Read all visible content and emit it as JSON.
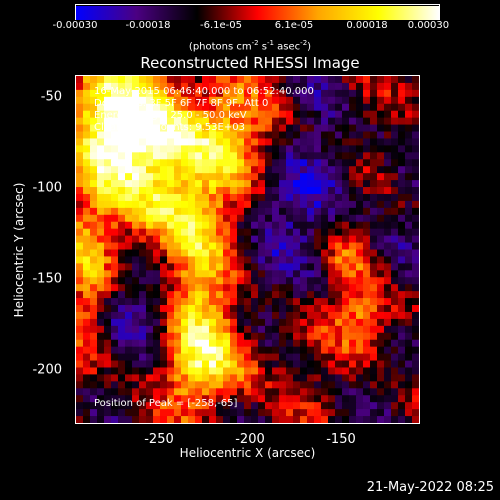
{
  "chart_data": {
    "type": "heatmap",
    "title": "Reconstructed RHESSI Image",
    "xlabel": "Heliocentric X (arcsec)",
    "ylabel": "Heliocentric Y (arcsec)",
    "xlim": [
      -295,
      -112
    ],
    "ylim": [
      -228,
      -37
    ],
    "x_ticks": [
      "-250",
      "-200",
      "-150"
    ],
    "x_tick_values": [
      -250,
      -200,
      -150
    ],
    "y_ticks": [
      "-50",
      "-100",
      "-150",
      "-200"
    ],
    "y_tick_values": [
      -50,
      -100,
      -150,
      -200
    ],
    "colorbar": {
      "ticks": [
        "-0.00030",
        "-0.00018",
        "-6.1e-05",
        "6.1e-05",
        "0.00018",
        "0.00030"
      ],
      "tick_values": [
        -0.0003,
        -0.00018,
        -6.1e-05,
        6.1e-05,
        0.00018,
        0.0003
      ],
      "units_prefix": "(photons cm",
      "units_sup1": "-2",
      "units_mid1": " s",
      "units_sup2": "-1",
      "units_mid2": " asec",
      "units_sup3": "-2",
      "units_suffix": ")",
      "colors": [
        "#0000ff",
        "#4b0082",
        "#000000",
        "#ff0000",
        "#ffa500",
        "#ffff00",
        "#ffffff"
      ]
    },
    "annotations": [
      "16-May-2015 06:46:40.000 to 06:52:40.000",
      "Detectors: 3F 5F 6F 7F 8F 9F, Att 0",
      "Energy Range: 25.0 - 50.0 keV",
      "Clean. Total counts: 9.53E+03"
    ],
    "peak_label": "Position of Peak = [-258,-65]",
    "peak": [
      -258,
      -65
    ],
    "intensity_regions": [
      {
        "name": "upper-left-bright",
        "x": -268,
        "y": -70,
        "peak": 0.0003
      },
      {
        "name": "lower-left-arm",
        "x": -225,
        "y": -185,
        "peak": 0.00022
      },
      {
        "name": "right-blob",
        "x": -140,
        "y": -165,
        "peak": 0.00018
      }
    ]
  },
  "footer": {
    "timestamp": "21-May-2022 08:25"
  }
}
